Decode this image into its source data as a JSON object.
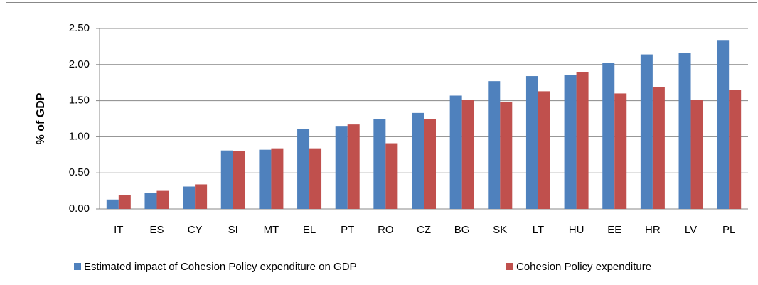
{
  "chart_data": {
    "type": "bar",
    "y_axis_label": "% of GDP",
    "categories": [
      "IT",
      "ES",
      "CY",
      "SI",
      "MT",
      "EL",
      "PT",
      "RO",
      "CZ",
      "BG",
      "SK",
      "LT",
      "HU",
      "EE",
      "HR",
      "LV",
      "PL"
    ],
    "series": [
      {
        "name": "Estimated impact of Cohesion Policy expenditure on GDP",
        "color": "#4f81bd",
        "values": [
          0.13,
          0.22,
          0.31,
          0.81,
          0.82,
          1.11,
          1.15,
          1.25,
          1.33,
          1.57,
          1.77,
          1.84,
          1.86,
          2.02,
          2.14,
          2.16,
          2.34
        ]
      },
      {
        "name": "Cohesion Policy expenditure",
        "color": "#c0504d",
        "values": [
          0.19,
          0.25,
          0.34,
          0.8,
          0.84,
          0.84,
          1.17,
          0.91,
          1.25,
          1.51,
          1.48,
          1.63,
          1.89,
          1.6,
          1.69,
          1.51,
          1.65
        ]
      }
    ],
    "ylim": [
      0,
      2.5
    ],
    "yticks": [
      {
        "value": 0,
        "label": "0.00"
      },
      {
        "value": 0.5,
        "label": "0.50"
      },
      {
        "value": 1,
        "label": "1.00"
      },
      {
        "value": 1.5,
        "label": "1.50"
      },
      {
        "value": 2,
        "label": "2.00"
      },
      {
        "value": 2.5,
        "label": "2.50"
      }
    ],
    "grid": true,
    "legend": "bottom"
  }
}
